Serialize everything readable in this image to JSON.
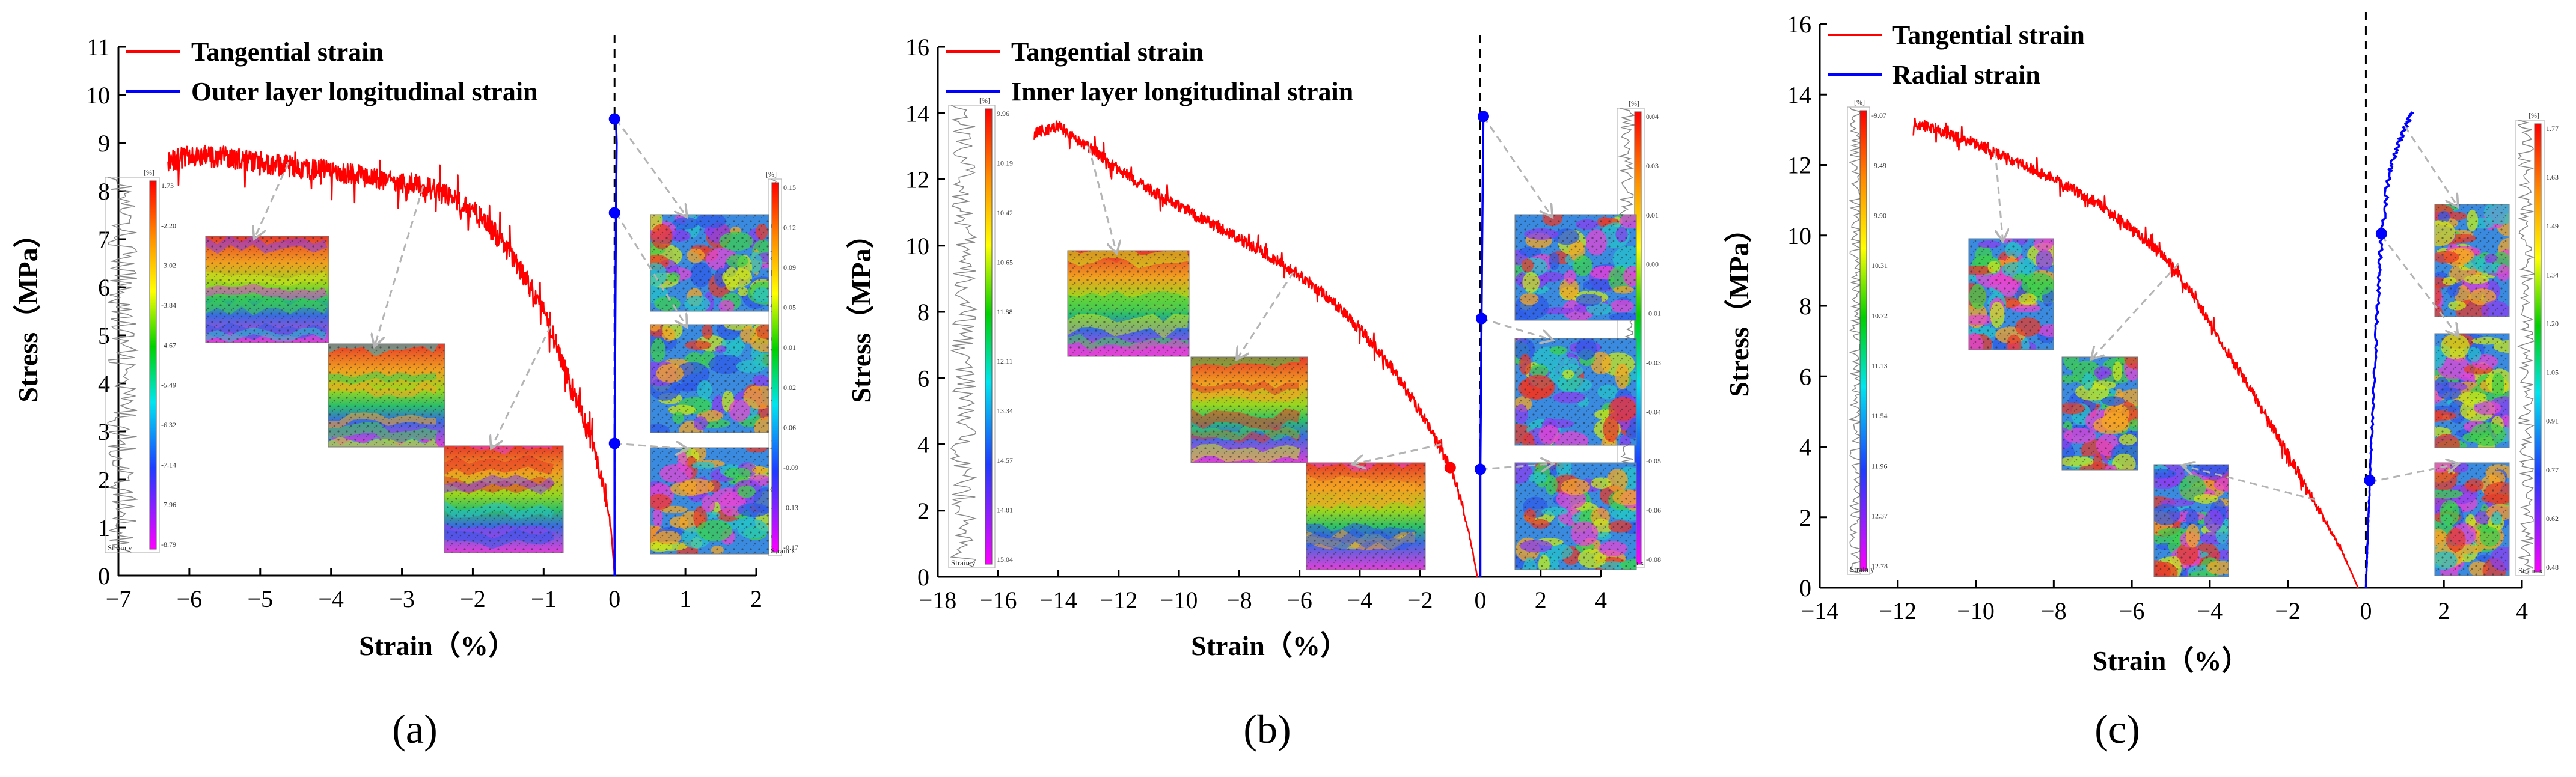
{
  "figure": {
    "panel_labels": [
      "(a)",
      "(b)",
      "(c)"
    ]
  },
  "chart_data": [
    {
      "type": "line",
      "panel": "(a)",
      "xlabel": "Strain（%）",
      "ylabel": "Stress（MPa）",
      "xlim": [
        -7,
        2
      ],
      "ylim": [
        0,
        11
      ],
      "xticks": [
        -7,
        -6,
        -5,
        -4,
        -3,
        -2,
        -1,
        0,
        1,
        2
      ],
      "yticks": [
        0,
        1,
        2,
        3,
        4,
        5,
        6,
        7,
        8,
        9,
        10,
        11
      ],
      "legend_position": "top-left",
      "series": [
        {
          "name": "Tangential strain",
          "color": "#ff0000",
          "points": [
            [
              -6.3,
              8.6
            ],
            [
              -6.0,
              8.75
            ],
            [
              -5.5,
              8.7
            ],
            [
              -5.0,
              8.6
            ],
            [
              -4.5,
              8.5
            ],
            [
              -4.0,
              8.4
            ],
            [
              -3.5,
              8.3
            ],
            [
              -3.0,
              8.2
            ],
            [
              -2.5,
              8.0
            ],
            [
              -2.0,
              7.6
            ],
            [
              -1.6,
              7.0
            ],
            [
              -1.3,
              6.3
            ],
            [
              -1.0,
              5.5
            ],
            [
              -0.8,
              4.7
            ],
            [
              -0.6,
              3.9
            ],
            [
              -0.45,
              3.3
            ],
            [
              -0.3,
              2.7
            ],
            [
              -0.15,
              1.8
            ],
            [
              -0.05,
              1.0
            ],
            [
              0.0,
              0.0
            ]
          ],
          "noise": 0.45
        },
        {
          "name": "Outer layer longitudinal strain",
          "color": "#0000ff",
          "points": [
            [
              0.0,
              0.0
            ],
            [
              0.0,
              1.0
            ],
            [
              0.0,
              2.75
            ],
            [
              0.01,
              5.0
            ],
            [
              0.02,
              7.55
            ],
            [
              0.03,
              9.0
            ],
            [
              0.02,
              9.5
            ]
          ],
          "noise": 0
        }
      ],
      "markers": [
        {
          "x": 0.0,
          "y": 2.75,
          "color": "#0000ff"
        },
        {
          "x": 0.0,
          "y": 7.55,
          "color": "#0000ff"
        },
        {
          "x": 0.0,
          "y": 9.5,
          "color": "#0000ff"
        }
      ],
      "reference_line_x": 0,
      "colorbars": [
        {
          "unit": "[%]",
          "label": "Strain y",
          "ticks": [
            "1.73",
            "-2.20",
            "-3.02",
            "-3.84",
            "-4.67",
            "-5.49",
            "-6.32",
            "-7.14",
            "-7.96",
            "-8.79"
          ]
        },
        {
          "unit": "[%]",
          "label": "Strain x",
          "ticks": [
            "0.15",
            "0.12",
            "0.09",
            "0.05",
            "0.01",
            "0.02",
            "0.06",
            "-0.09",
            "-0.13",
            "-0.17"
          ]
        }
      ]
    },
    {
      "type": "line",
      "panel": "(b)",
      "xlabel": "Strain（%）",
      "ylabel": "Stress（MPa）",
      "xlim": [
        -18,
        4
      ],
      "ylim": [
        0,
        16
      ],
      "xticks": [
        -18,
        -16,
        -14,
        -12,
        -10,
        -8,
        -6,
        -4,
        -2,
        0,
        2,
        4
      ],
      "yticks": [
        0,
        2,
        4,
        6,
        8,
        10,
        12,
        14,
        16
      ],
      "legend_position": "top-left",
      "series": [
        {
          "name": "Tangential strain",
          "color": "#ff0000",
          "points": [
            [
              -14.8,
              13.4
            ],
            [
              -14.0,
              13.6
            ],
            [
              -13.0,
              13.0
            ],
            [
              -12.0,
              12.3
            ],
            [
              -11.0,
              11.7
            ],
            [
              -10.0,
              11.2
            ],
            [
              -9.0,
              10.7
            ],
            [
              -8.0,
              10.2
            ],
            [
              -7.0,
              9.7
            ],
            [
              -6.0,
              9.1
            ],
            [
              -5.0,
              8.4
            ],
            [
              -4.0,
              7.5
            ],
            [
              -3.0,
              6.4
            ],
            [
              -2.0,
              5.0
            ],
            [
              -1.4,
              4.0
            ],
            [
              -1.0,
              3.3
            ],
            [
              -0.6,
              2.2
            ],
            [
              -0.3,
              1.0
            ],
            [
              -0.1,
              0.0
            ]
          ],
          "noise": 0.35
        },
        {
          "name": "Inner layer longitudinal strain",
          "color": "#0000ff",
          "points": [
            [
              0.0,
              0.0
            ],
            [
              0.0,
              1.5
            ],
            [
              0.0,
              3.25
            ],
            [
              0.02,
              5.5
            ],
            [
              0.04,
              7.8
            ],
            [
              0.06,
              10.0
            ],
            [
              0.08,
              12.0
            ],
            [
              0.1,
              13.9
            ]
          ],
          "noise": 0
        }
      ],
      "markers": [
        {
          "x": -1.0,
          "y": 3.3,
          "color": "#ff0000"
        },
        {
          "x": 0.0,
          "y": 3.25,
          "color": "#0000ff"
        },
        {
          "x": 0.04,
          "y": 7.8,
          "color": "#0000ff"
        },
        {
          "x": 0.1,
          "y": 13.9,
          "color": "#0000ff"
        }
      ],
      "reference_line_x": 0,
      "colorbars": [
        {
          "unit": "[%]",
          "label": "Strain y",
          "ticks": [
            "9.96",
            "10.19",
            "10.42",
            "10.65",
            "11.88",
            "12.11",
            "13.34",
            "14.57",
            "14.81",
            "15.04"
          ]
        },
        {
          "unit": "[%]",
          "label": "Strain x",
          "ticks": [
            "0.04",
            "0.03",
            "0.01",
            "0.00",
            "-0.01",
            "-0.03",
            "-0.04",
            "-0.05",
            "-0.06",
            "-0.08"
          ]
        }
      ]
    },
    {
      "type": "line",
      "panel": "(c)",
      "xlabel": "Strain（%）",
      "ylabel": "Stress（MPa）",
      "xlim": [
        -14,
        4
      ],
      "ylim": [
        0,
        16
      ],
      "xticks": [
        -14,
        -12,
        -10,
        -8,
        -6,
        -4,
        -2,
        0,
        2,
        4
      ],
      "yticks": [
        0,
        2,
        4,
        6,
        8,
        10,
        12,
        14,
        16
      ],
      "legend_position": "top-left",
      "series": [
        {
          "name": "Tangential strain",
          "color": "#ff0000",
          "points": [
            [
              -11.6,
              13.2
            ],
            [
              -11.0,
              13.0
            ],
            [
              -10.0,
              12.6
            ],
            [
              -9.0,
              12.1
            ],
            [
              -8.0,
              11.6
            ],
            [
              -7.0,
              11.0
            ],
            [
              -6.0,
              10.2
            ],
            [
              -5.0,
              9.2
            ],
            [
              -4.6,
              8.6
            ],
            [
              -4.0,
              7.5
            ],
            [
              -3.0,
              5.7
            ],
            [
              -2.0,
              3.8
            ],
            [
              -1.2,
              2.2
            ],
            [
              -0.6,
              1.0
            ],
            [
              -0.2,
              0.0
            ]
          ],
          "noise": 0.3
        },
        {
          "name": "Radial strain",
          "color": "#0000ff",
          "points": [
            [
              0.0,
              0.0
            ],
            [
              0.05,
              1.5
            ],
            [
              0.1,
              3.0
            ],
            [
              0.2,
              5.5
            ],
            [
              0.3,
              8.0
            ],
            [
              0.4,
              10.0
            ],
            [
              0.6,
              11.8
            ],
            [
              0.9,
              12.8
            ],
            [
              1.2,
              13.5
            ]
          ],
          "noise": 0.25
        }
      ],
      "markers": [
        {
          "x": 0.1,
          "y": 3.05,
          "color": "#0000ff"
        },
        {
          "x": 0.4,
          "y": 10.05,
          "color": "#0000ff"
        }
      ],
      "reference_line_x": 0,
      "colorbars": [
        {
          "unit": "[%]",
          "label": "Strain y",
          "ticks": [
            "-9.07",
            "-9.49",
            "-9.90",
            "10.31",
            "10.72",
            "11.13",
            "11.54",
            "11.96",
            "12.37",
            "12.78"
          ]
        },
        {
          "unit": "[%]",
          "label": "Strain x",
          "ticks": [
            "1.77",
            "1.63",
            "1.49",
            "1.34",
            "1.20",
            "1.05",
            "0.91",
            "0.77",
            "0.62",
            "0.48"
          ]
        }
      ]
    }
  ]
}
